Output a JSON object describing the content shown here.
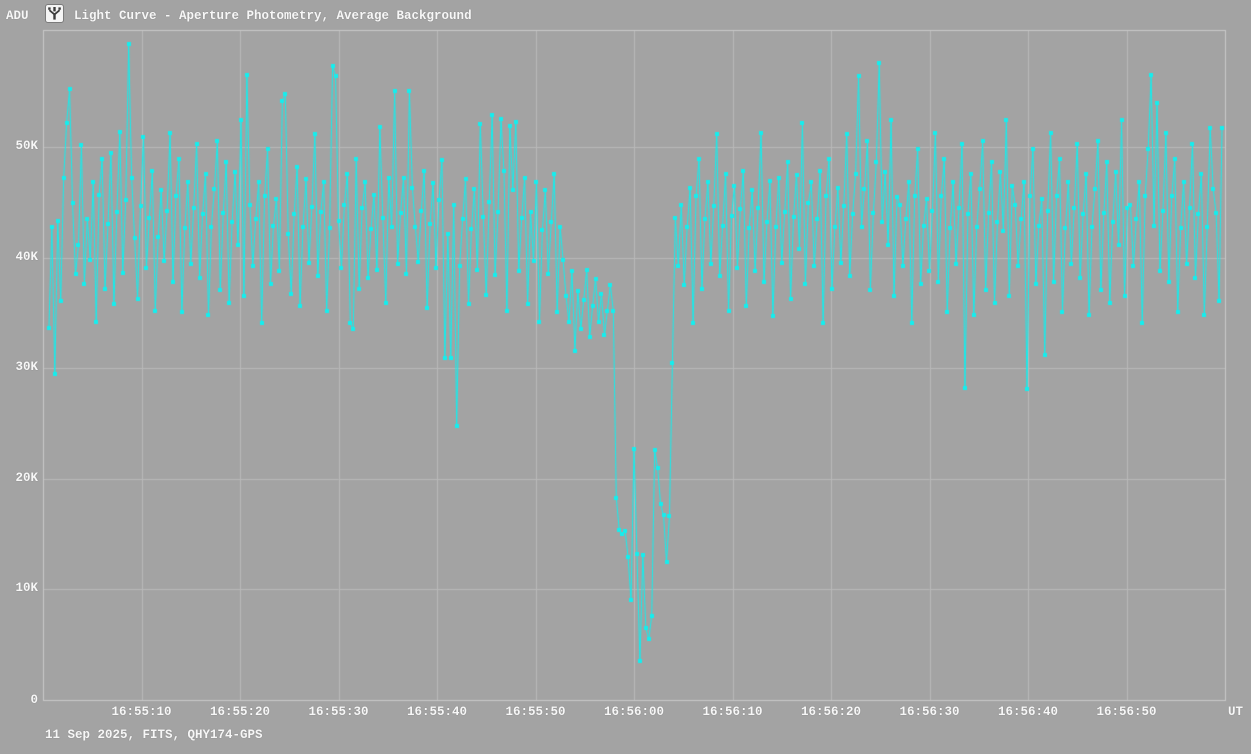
{
  "header": {
    "y_axis_unit": "ADU",
    "app_icon": "tangra-app-icon",
    "title": "Light Curve - Aperture Photometry, Average Background"
  },
  "footer": {
    "info": "11 Sep 2025, FITS, QHY174-GPS"
  },
  "colors": {
    "background": "#a3a3a3",
    "grid": "#b9b9b9",
    "axis_border": "#c9c9c9",
    "series": "#12efef",
    "text": "#f7f7f7",
    "icon_glyph": "#3c3c3c"
  },
  "chart_data": {
    "type": "line",
    "title": "Light Curve - Aperture Photometry, Average Background",
    "xlabel": "UT",
    "ylabel": "ADU",
    "origin_label": "0",
    "grid": true,
    "legend": "none",
    "x_range_ut": [
      "16:55:00",
      "16:57:00"
    ],
    "x_range_seconds": [
      0,
      120
    ],
    "ylim_kadu": [
      0,
      60.6
    ],
    "y_ticks": [
      {
        "label": "10K",
        "value": 10
      },
      {
        "label": "20K",
        "value": 20
      },
      {
        "label": "30K",
        "value": 30
      },
      {
        "label": "40K",
        "value": 40
      },
      {
        "label": "50K",
        "value": 50
      }
    ],
    "x_ticks": [
      {
        "label": "16:55:10",
        "seconds": 10
      },
      {
        "label": "16:55:20",
        "seconds": 20
      },
      {
        "label": "16:55:30",
        "seconds": 30
      },
      {
        "label": "16:55:40",
        "seconds": 40
      },
      {
        "label": "16:55:50",
        "seconds": 50
      },
      {
        "label": "16:56:00",
        "seconds": 60
      },
      {
        "label": "16:56:10",
        "seconds": 70
      },
      {
        "label": "16:56:20",
        "seconds": 80
      },
      {
        "label": "16:56:30",
        "seconds": 90
      },
      {
        "label": "16:56:40",
        "seconds": 100
      },
      {
        "label": "16:56:50",
        "seconds": 110
      }
    ],
    "series": [
      {
        "name": "aperture-photometry-average-background",
        "marker": "square",
        "color": "#12efef",
        "t0_seconds": 0.6,
        "dt_seconds": 0.3,
        "values_kadu": [
          33.6,
          42.8,
          29.5,
          43.3,
          36.1,
          47.2,
          52.2,
          55.2,
          44.9,
          38.5,
          41.1,
          50.2,
          37.6,
          43.5,
          39.8,
          46.8,
          34.2,
          45.7,
          48.9,
          37.2,
          43.0,
          49.5,
          35.8,
          44.1,
          51.4,
          38.6,
          45.2,
          59.3,
          47.2,
          41.8,
          36.3,
          44.7,
          50.9,
          39.1,
          43.6,
          47.8,
          35.2,
          41.9,
          46.1,
          39.7,
          44.2,
          51.3,
          37.8,
          45.6,
          48.9,
          35.1,
          42.7,
          46.8,
          39.4,
          44.5,
          50.3,
          38.2,
          43.9,
          47.6,
          34.8,
          42.8,
          46.2,
          50.5,
          37.1,
          44.0,
          48.6,
          35.9,
          43.2,
          47.7,
          41.1,
          52.4,
          36.5,
          56.5,
          44.8,
          39.2,
          43.5,
          46.8,
          34.1,
          45.6,
          49.8,
          37.6,
          42.9,
          45.3,
          38.8,
          54.2,
          54.8,
          42.1,
          36.7,
          43.9,
          48.2,
          35.6,
          42.8,
          47.1,
          39.5,
          44.6,
          51.2,
          38.3,
          44.1,
          46.8,
          35.2,
          42.7,
          57.3,
          56.4,
          43.3,
          39.1,
          44.8,
          47.6,
          34.1,
          33.5,
          48.9,
          37.2,
          44.5,
          46.8,
          38.2,
          42.6,
          45.7,
          38.9,
          51.8,
          43.6,
          35.9,
          47.2,
          42.8,
          55.1,
          39.4,
          44.0,
          47.2,
          38.5,
          55.1,
          46.3,
          42.8,
          39.6,
          44.2,
          47.8,
          35.4,
          43.0,
          46.7,
          39.1,
          45.2,
          48.8,
          30.9,
          42.1,
          30.9,
          44.8,
          24.8,
          39.2,
          43.5,
          47.1,
          35.8,
          42.6,
          46.2,
          38.9,
          52.1,
          43.7,
          36.6,
          45.0,
          52.9,
          38.4,
          44.1,
          52.5,
          47.8,
          35.2,
          51.9,
          46.1,
          52.3,
          38.8,
          43.6,
          47.2,
          35.8,
          44.1,
          39.7,
          46.8,
          34.2,
          42.5,
          46.1,
          38.5,
          43.2,
          47.6,
          35.1,
          42.8,
          39.8,
          36.5,
          34.2,
          38.8,
          31.6,
          37.0,
          33.5,
          36.2,
          38.9,
          32.8,
          35.6,
          38.1,
          34.2,
          36.7,
          33.0,
          35.2,
          37.5,
          35.2,
          18.3,
          15.4,
          15.0,
          15.3,
          12.9,
          9.0,
          22.7,
          13.2,
          3.5,
          13.1,
          6.5,
          5.5,
          7.6,
          22.6,
          21.0,
          17.7,
          16.7,
          12.5,
          16.6,
          30.5,
          43.6,
          39.2,
          44.8,
          37.5,
          42.8,
          46.3,
          34.1,
          45.6,
          48.9,
          37.2,
          43.5,
          46.8,
          39.4,
          44.7,
          51.2,
          38.3,
          42.9,
          47.6,
          35.2,
          43.8,
          46.5,
          39.1,
          44.4,
          47.8,
          35.6,
          42.7,
          46.1,
          38.8,
          44.5,
          51.3,
          37.8,
          43.2,
          46.9,
          34.7,
          42.8,
          47.2,
          39.5,
          44.1,
          48.6,
          36.3,
          43.7,
          47.5,
          40.8,
          52.2,
          37.6,
          44.9,
          46.8,
          39.2,
          43.5,
          47.8,
          34.1,
          45.6,
          48.9,
          37.2,
          42.8,
          46.3,
          39.5,
          44.7,
          51.2,
          38.3,
          43.9,
          47.6,
          56.4,
          42.8,
          46.2,
          50.5,
          37.1,
          44.0,
          48.6,
          57.6,
          43.2,
          47.7,
          41.1,
          52.4,
          36.5,
          45.5,
          44.8,
          39.2,
          43.5,
          46.8,
          34.1,
          45.6,
          49.8,
          37.6,
          42.9,
          45.3,
          38.8,
          44.2,
          51.3,
          37.8,
          45.6,
          48.9,
          35.1,
          42.7,
          46.8,
          39.4,
          44.5,
          50.3,
          28.2,
          43.9,
          47.6,
          34.8,
          42.8,
          46.2,
          50.5,
          37.1,
          44.0,
          48.6,
          35.9,
          43.2,
          47.7,
          42.4,
          52.4,
          36.5,
          46.5,
          44.8,
          39.2,
          43.5,
          46.8,
          28.1,
          45.6,
          49.8,
          37.6,
          42.9,
          45.3,
          31.2,
          44.2,
          51.3,
          37.8,
          45.6,
          48.9,
          35.1,
          42.7,
          46.8,
          39.4,
          44.5,
          50.3,
          38.2,
          43.9,
          47.6,
          34.8,
          42.8,
          46.2,
          50.5,
          37.1,
          44.0,
          48.6,
          35.9,
          43.2,
          47.7,
          41.1,
          52.4,
          36.5,
          44.5,
          44.8,
          39.2,
          43.5,
          46.8,
          34.1,
          45.6,
          49.8,
          56.5,
          42.9,
          54.0,
          38.8,
          44.2,
          51.3,
          37.8,
          45.6,
          48.9,
          35.1,
          42.7,
          46.8,
          39.4,
          44.5,
          50.3,
          38.2,
          43.9,
          47.6,
          34.8,
          42.8,
          51.7,
          46.2,
          44.0,
          36.1,
          51.7
        ]
      }
    ]
  }
}
